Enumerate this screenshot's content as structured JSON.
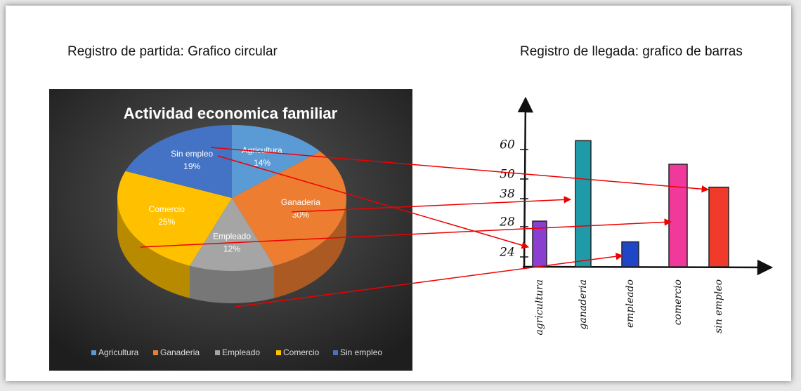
{
  "captions": {
    "left": "Registro de partida: Grafico circular",
    "right": "Registro de llegada: grafico de barras"
  },
  "chart_data": [
    {
      "type": "pie",
      "title": "Actividad economica familiar",
      "categories": [
        "Agricultura",
        "Ganaderia",
        "Empleado",
        "Comercio",
        "Sin empleo"
      ],
      "values": [
        14,
        30,
        12,
        25,
        19
      ],
      "value_labels": [
        "14%",
        "30%",
        "12%",
        "25%",
        "19%"
      ],
      "colors": [
        "#5b9bd5",
        "#ed7d31",
        "#a5a5a5",
        "#ffc000",
        "#4472c4"
      ],
      "legend": "bottom"
    },
    {
      "type": "bar",
      "categories": [
        "agricultura",
        "ganaderia",
        "empleado",
        "comercio",
        "sin empleo"
      ],
      "values": [
        30,
        63,
        26,
        55,
        45
      ],
      "colors": [
        "#8a3fd1",
        "#1f9aa8",
        "#2046c8",
        "#f0399a",
        "#f03a2a"
      ],
      "yticks": [
        24,
        28,
        38,
        50,
        60
      ]
    }
  ]
}
